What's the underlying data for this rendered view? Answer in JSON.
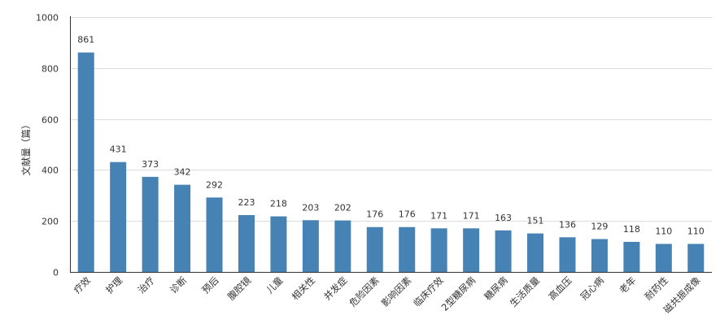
{
  "chart_data": {
    "type": "bar",
    "ylabel": "文献量（篇）",
    "xlabel": "",
    "title": "",
    "ylim": [
      0,
      1000
    ],
    "yticks": [
      0,
      200,
      400,
      600,
      800,
      1000
    ],
    "grid": true,
    "categories": [
      "疗效",
      "护理",
      "治疗",
      "诊断",
      "预后",
      "腹腔镜",
      "儿童",
      "相关性",
      "并发症",
      "危险因素",
      "影响因素",
      "临床疗效",
      "2型糖尿病",
      "糖尿病",
      "生活质量",
      "高血压",
      "冠心病",
      "老年",
      "耐药性",
      "磁共振成像"
    ],
    "values": [
      861,
      431,
      373,
      342,
      292,
      223,
      218,
      203,
      202,
      176,
      176,
      171,
      171,
      163,
      151,
      136,
      129,
      118,
      110,
      110
    ],
    "bar_color": "#4682b4"
  }
}
